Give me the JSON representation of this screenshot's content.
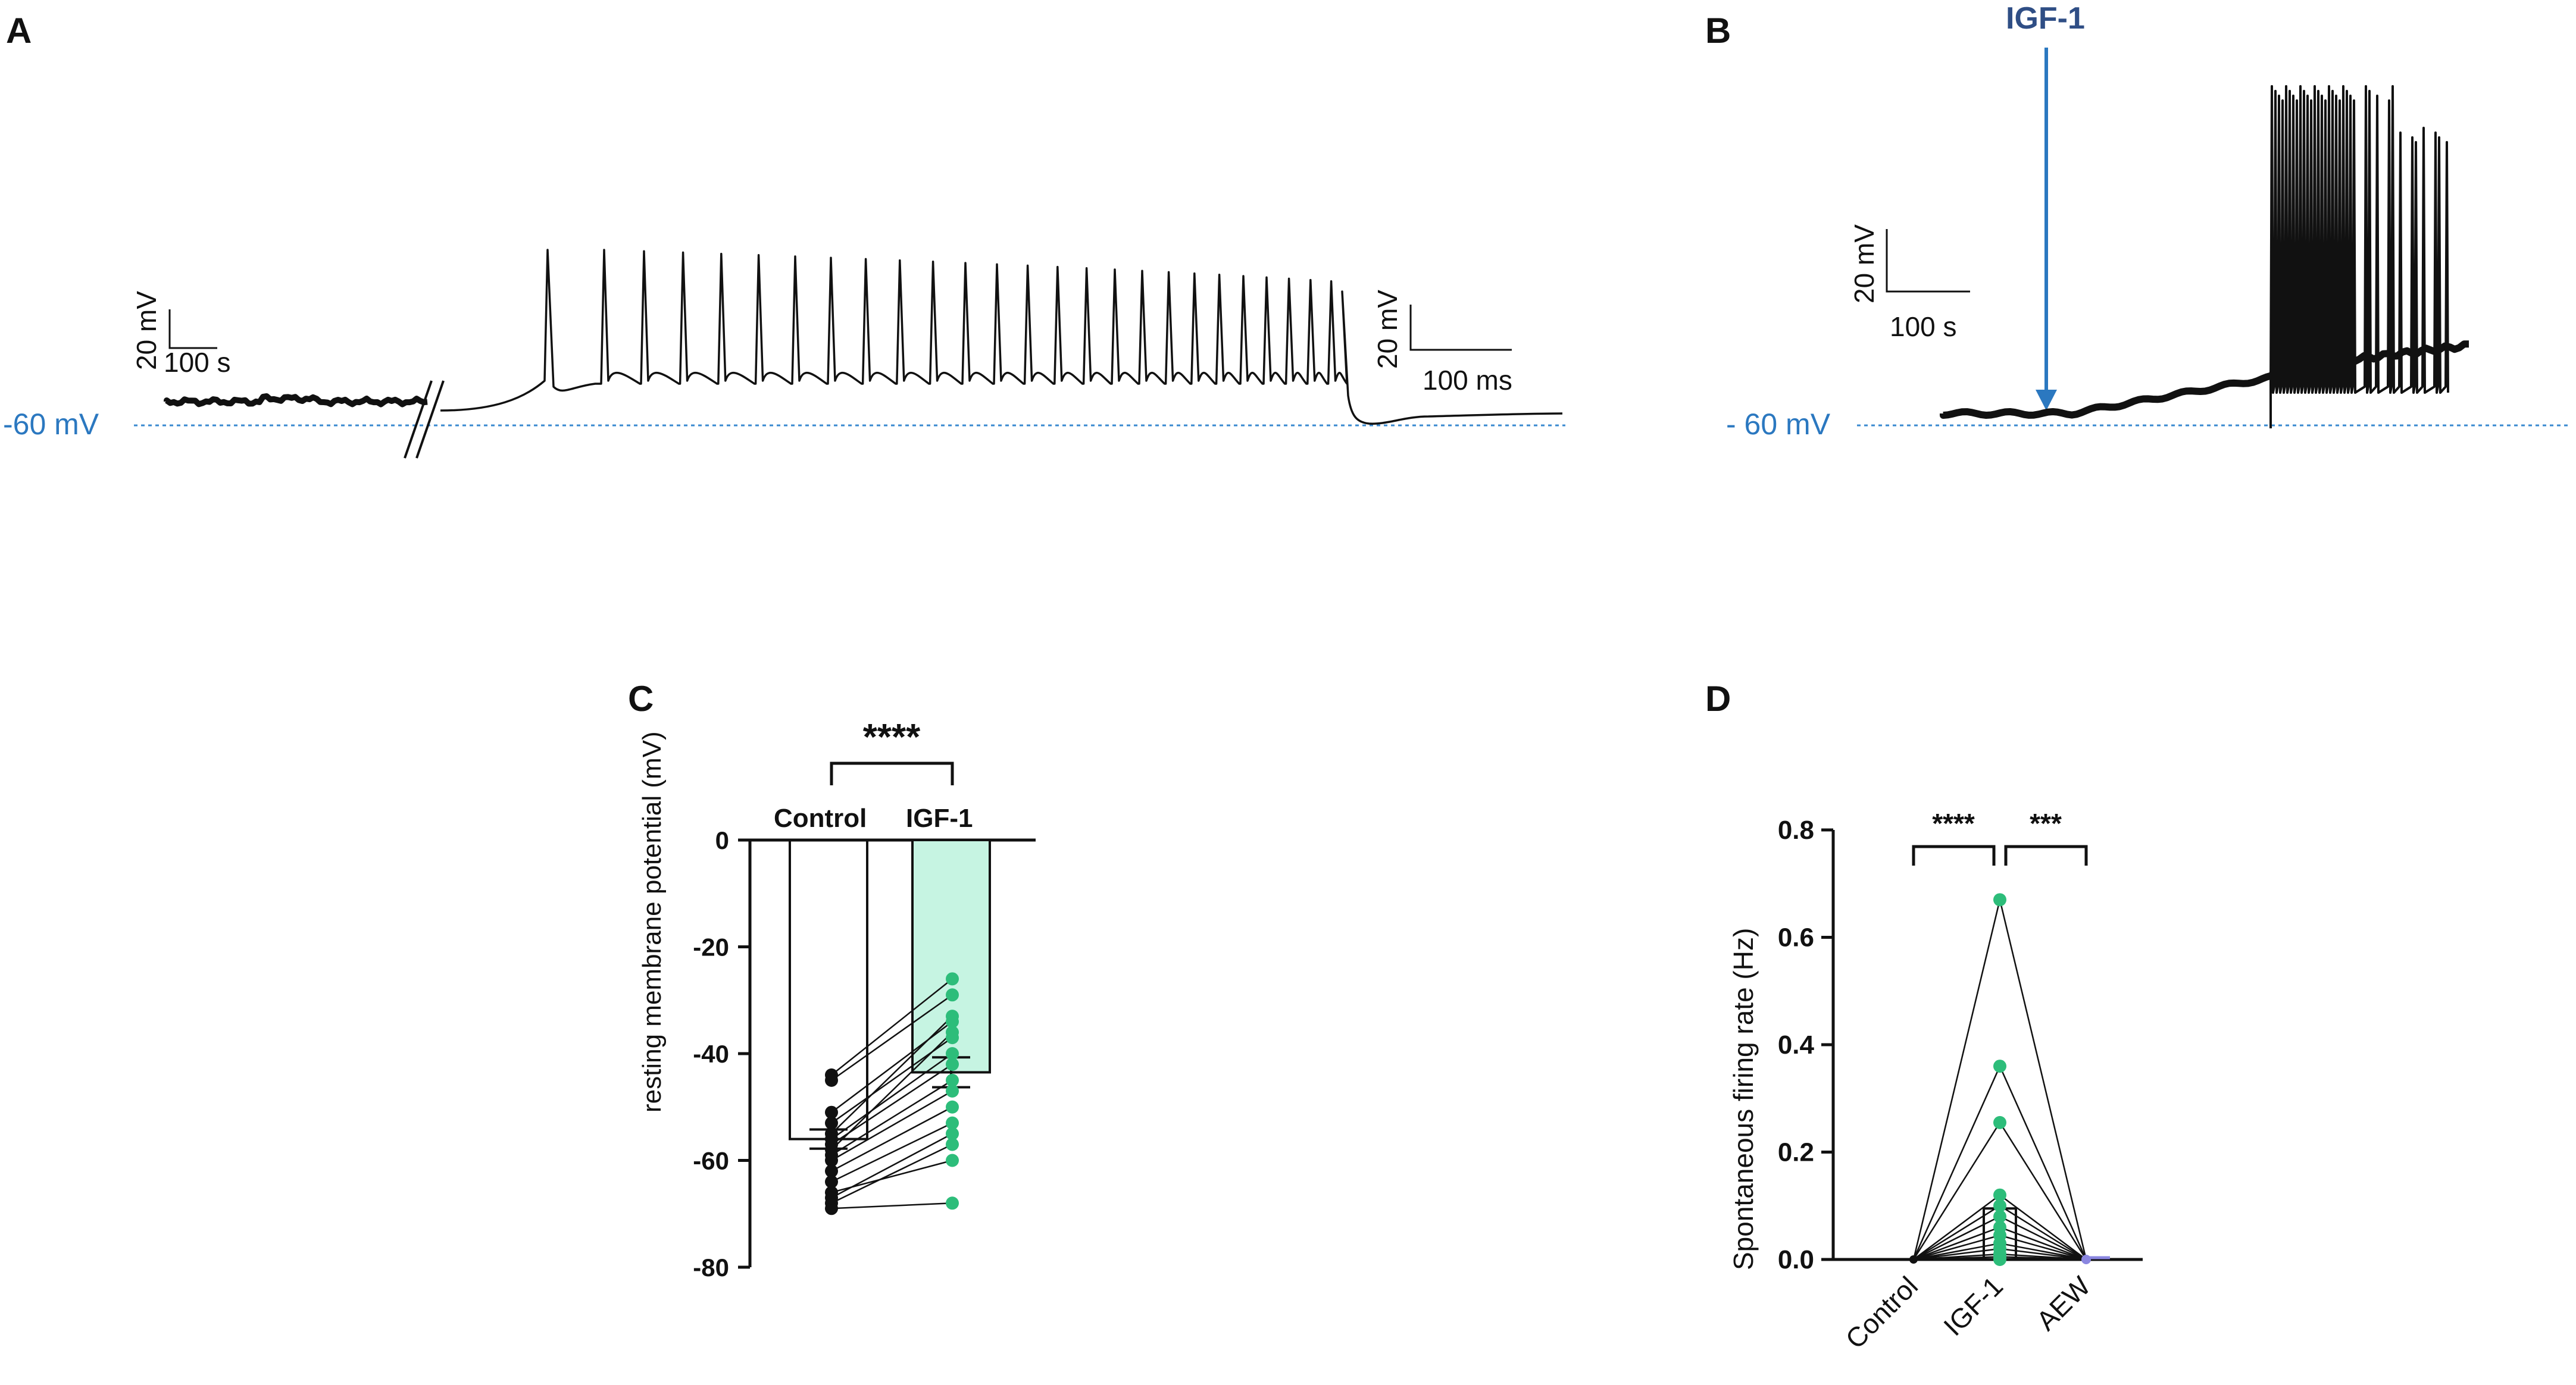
{
  "panels": {
    "A": {
      "letter": "A",
      "baseline_label": "-60 mV",
      "scale_left": {
        "v": "20 mV",
        "t": "100 s"
      },
      "scale_right": {
        "v": "20 mV",
        "t": "100 ms"
      }
    },
    "B": {
      "letter": "B",
      "baseline_label": "- 60 mV",
      "drug_label": "IGF-1",
      "scale": {
        "v": "20 mV",
        "t": "100 s"
      }
    },
    "C": {
      "letter": "C",
      "sig": "****"
    },
    "D": {
      "letter": "D",
      "sig1": "****",
      "sig2": "***"
    }
  },
  "colors": {
    "green": "#2dbd7a",
    "green_fill": "#c6f4e2",
    "blue": "#2b78c0",
    "igf_blue": "#2f4e85",
    "black": "#111111",
    "aew": "#8a86e0"
  },
  "chart_data": [
    {
      "panel": "C",
      "type": "bar",
      "categories": [
        "Control",
        "IGF-1"
      ],
      "ylabel": "resting membrane potential (mV)",
      "ylim": [
        -80,
        0
      ],
      "yticks": [
        0,
        -20,
        -40,
        -60,
        -80
      ],
      "bar_means": [
        -56,
        -43.5
      ],
      "sem": [
        1.8,
        2.8
      ],
      "paired_points": [
        [
          -44,
          -26
        ],
        [
          -45,
          -29
        ],
        [
          -51,
          -34
        ],
        [
          -53,
          -37
        ],
        [
          -55,
          -33
        ],
        [
          -56,
          -40
        ],
        [
          -57,
          -42
        ],
        [
          -58,
          -36
        ],
        [
          -59,
          -45
        ],
        [
          -60,
          -47
        ],
        [
          -62,
          -50
        ],
        [
          -64,
          -53
        ],
        [
          -66,
          -60
        ],
        [
          -68,
          -57
        ],
        [
          -69,
          -68
        ],
        [
          -67,
          -55
        ]
      ],
      "significance": "****"
    },
    {
      "panel": "D",
      "type": "scatter",
      "categories": [
        "Control",
        "IGF-1",
        "AEW"
      ],
      "ylabel": "Spontaneous firing rate (Hz)",
      "ylim": [
        0,
        0.8
      ],
      "yticks": [
        "0.0",
        "0.2",
        "0.4",
        "0.6",
        "0.8"
      ],
      "bar_means": [
        0,
        0.095,
        0
      ],
      "igf1_values": [
        0.67,
        0.36,
        0.255,
        0.12,
        0.1,
        0.08,
        0.06,
        0.045,
        0.03,
        0.02,
        0.01,
        0.005,
        0.0
      ],
      "control_values": [
        0,
        0,
        0,
        0,
        0,
        0,
        0,
        0,
        0,
        0,
        0,
        0,
        0
      ],
      "aew_values": [
        0,
        0,
        0,
        0,
        0,
        0,
        0,
        0,
        0,
        0,
        0,
        0,
        0
      ],
      "significance": [
        "****",
        "***"
      ]
    }
  ]
}
